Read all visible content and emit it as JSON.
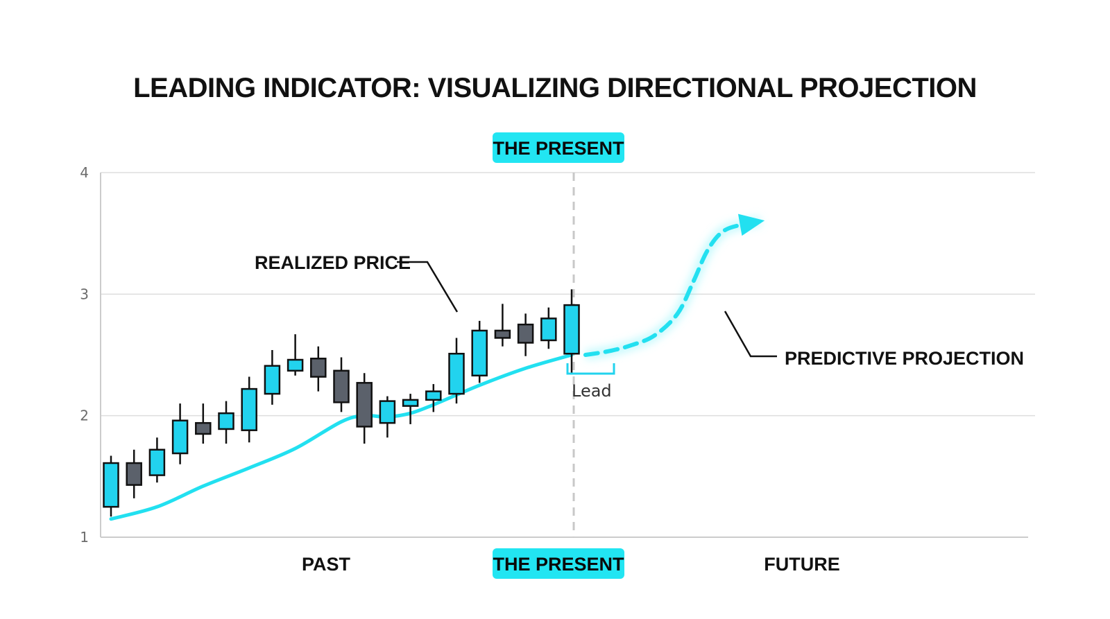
{
  "chart_data": {
    "type": "candlestick",
    "title": "LEADING INDICATOR: VISUALIZING DIRECTIONAL PROJECTION",
    "y_ticks": [
      "1",
      "2",
      "3",
      "4"
    ],
    "ylim": [
      1,
      4
    ],
    "grid": true,
    "colors": {
      "up": "#22d3ee",
      "down": "#5b616b",
      "line": "#22e0f0",
      "badge": "#22e5f2",
      "wick": "#111111",
      "present_line": "#c8c8c8"
    },
    "candles": [
      {
        "open": 1.25,
        "close": 1.61,
        "high": 1.67,
        "low": 1.17
      },
      {
        "open": 1.61,
        "close": 1.43,
        "high": 1.72,
        "low": 1.32
      },
      {
        "open": 1.51,
        "close": 1.72,
        "high": 1.82,
        "low": 1.45
      },
      {
        "open": 1.69,
        "close": 1.96,
        "high": 2.1,
        "low": 1.6
      },
      {
        "open": 1.94,
        "close": 1.85,
        "high": 2.1,
        "low": 1.77
      },
      {
        "open": 1.89,
        "close": 2.02,
        "high": 2.12,
        "low": 1.77
      },
      {
        "open": 1.88,
        "close": 2.22,
        "high": 2.32,
        "low": 1.78
      },
      {
        "open": 2.18,
        "close": 2.41,
        "high": 2.54,
        "low": 2.09
      },
      {
        "open": 2.37,
        "close": 2.46,
        "high": 2.67,
        "low": 2.33
      },
      {
        "open": 2.47,
        "close": 2.32,
        "high": 2.57,
        "low": 2.2
      },
      {
        "open": 2.37,
        "close": 2.11,
        "high": 2.48,
        "low": 2.03
      },
      {
        "open": 2.27,
        "close": 1.91,
        "high": 2.35,
        "low": 1.77
      },
      {
        "open": 1.94,
        "close": 2.12,
        "high": 2.16,
        "low": 1.82
      },
      {
        "open": 2.08,
        "close": 2.13,
        "high": 2.18,
        "low": 1.93
      },
      {
        "open": 2.13,
        "close": 2.2,
        "high": 2.26,
        "low": 2.03
      },
      {
        "open": 2.18,
        "close": 2.51,
        "high": 2.64,
        "low": 2.1
      },
      {
        "open": 2.33,
        "close": 2.7,
        "high": 2.78,
        "low": 2.27
      },
      {
        "open": 2.7,
        "close": 2.64,
        "high": 2.92,
        "low": 2.57
      },
      {
        "open": 2.75,
        "close": 2.6,
        "high": 2.84,
        "low": 2.49
      },
      {
        "open": 2.62,
        "close": 2.8,
        "high": 2.89,
        "low": 2.55
      },
      {
        "open": 2.51,
        "close": 2.91,
        "high": 3.04,
        "low": 2.35
      }
    ],
    "indicator_line": [
      [
        0,
        1.15
      ],
      [
        2,
        1.25
      ],
      [
        4,
        1.42
      ],
      [
        6,
        1.57
      ],
      [
        8,
        1.73
      ],
      [
        10,
        1.95
      ],
      [
        11,
        2.0
      ],
      [
        12,
        1.99
      ],
      [
        13,
        2.02
      ],
      [
        14,
        2.09
      ],
      [
        16,
        2.25
      ],
      [
        18,
        2.39
      ],
      [
        20,
        2.5
      ]
    ],
    "projection": [
      [
        20.6,
        2.5
      ],
      [
        21.6,
        2.53
      ],
      [
        22.6,
        2.58
      ],
      [
        23.6,
        2.66
      ],
      [
        24.6,
        2.84
      ],
      [
        25.3,
        3.11
      ],
      [
        25.9,
        3.36
      ],
      [
        26.6,
        3.52
      ],
      [
        27.6,
        3.58
      ],
      [
        28.2,
        3.6
      ]
    ],
    "present_index": 20
  },
  "labels": {
    "present_top": "THE PRESENT",
    "present_bottom": "THE PRESENT",
    "past": "PAST",
    "future": "FUTURE",
    "realized_price": "REALIZED PRICE",
    "predictive_projection": "PREDICTIVE PROJECTION",
    "lead": "Lead"
  }
}
